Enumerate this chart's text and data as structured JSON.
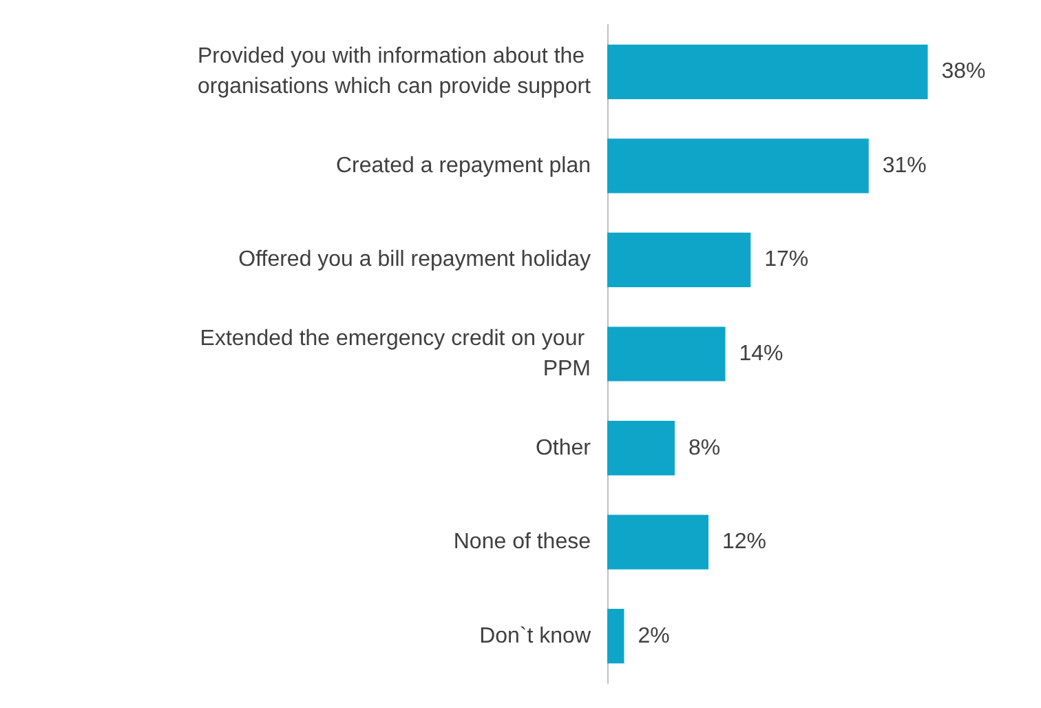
{
  "chart_data": {
    "type": "bar",
    "orientation": "horizontal",
    "categories": [
      "Provided you with information about the organisations which can provide support",
      "Created a repayment plan",
      "Offered you a bill repayment holiday",
      "Extended the emergency credit on your PPM",
      "Other",
      "None of these",
      "Don`t know"
    ],
    "values": [
      38,
      31,
      17,
      14,
      8,
      12,
      2
    ],
    "value_labels": [
      "38%",
      "31%",
      "17%",
      "14%",
      "8%",
      "12%",
      "2%"
    ],
    "color": "#0ea5c9"
  }
}
